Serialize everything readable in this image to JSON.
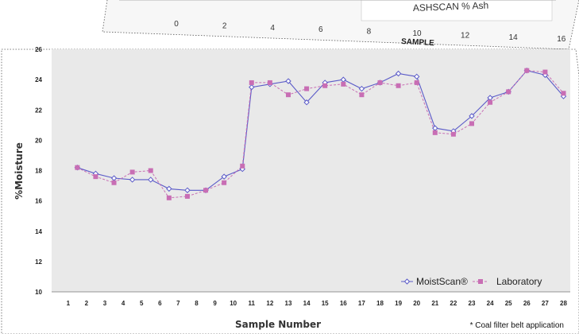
{
  "chart_data": [
    {
      "type": "line",
      "xlabel": "SAMPLE",
      "xticks": [
        "0",
        "2",
        "4",
        "6",
        "8",
        "10",
        "12",
        "14",
        "16"
      ],
      "legend_fragment": "ASHSCAN % Ash"
    },
    {
      "type": "line",
      "xlabel": "Sample Number",
      "ylabel": "%Moisture",
      "ylim": [
        10,
        26
      ],
      "yticks": [
        "10",
        "12",
        "14",
        "16",
        "18",
        "20",
        "22",
        "24",
        "26"
      ],
      "xticks": [
        "1",
        "2",
        "3",
        "4",
        "5",
        "6",
        "7",
        "8",
        "9",
        "10",
        "11",
        "12",
        "13",
        "14",
        "15",
        "16",
        "17",
        "18",
        "19",
        "20",
        "21",
        "22",
        "23",
        "24",
        "25",
        "26",
        "27",
        "28"
      ],
      "grid": false,
      "legend_position": "bottom-right",
      "note": "* Coal filter belt application",
      "series": [
        {
          "name": "MoistScan®",
          "color": "#5a5ac8",
          "marker": "diamond",
          "points": [
            [
              0.5,
              18.2
            ],
            [
              1.5,
              17.8
            ],
            [
              2.5,
              17.5
            ],
            [
              3.5,
              17.4
            ],
            [
              4.5,
              17.4
            ],
            [
              5.5,
              16.8
            ],
            [
              6.5,
              16.7
            ],
            [
              7.5,
              16.7
            ],
            [
              8.5,
              17.6
            ],
            [
              9.5,
              18.1
            ],
            [
              10,
              23.5
            ],
            [
              11,
              23.7
            ],
            [
              12,
              23.9
            ],
            [
              13,
              22.5
            ],
            [
              14,
              23.8
            ],
            [
              15,
              24.0
            ],
            [
              16,
              23.4
            ],
            [
              17,
              23.8
            ],
            [
              18,
              24.4
            ],
            [
              19,
              24.2
            ],
            [
              20,
              20.8
            ],
            [
              21,
              20.6
            ],
            [
              22,
              21.6
            ],
            [
              23,
              22.8
            ],
            [
              24,
              23.2
            ],
            [
              25,
              24.6
            ],
            [
              26,
              24.3
            ],
            [
              27,
              22.9
            ]
          ]
        },
        {
          "name": "Laboratory",
          "color": "#c86eb4",
          "marker": "square",
          "points": [
            [
              0.5,
              18.2
            ],
            [
              1.5,
              17.6
            ],
            [
              2.5,
              17.2
            ],
            [
              3.5,
              17.9
            ],
            [
              4.5,
              18.0
            ],
            [
              5.5,
              16.2
            ],
            [
              6.5,
              16.3
            ],
            [
              7.5,
              16.7
            ],
            [
              8.5,
              17.2
            ],
            [
              9.5,
              18.3
            ],
            [
              10,
              23.8
            ],
            [
              11,
              23.8
            ],
            [
              12,
              23.0
            ],
            [
              13,
              23.4
            ],
            [
              14,
              23.6
            ],
            [
              15,
              23.7
            ],
            [
              16,
              23.0
            ],
            [
              17,
              23.8
            ],
            [
              18,
              23.6
            ],
            [
              19,
              23.8
            ],
            [
              20,
              20.5
            ],
            [
              21,
              20.4
            ],
            [
              22,
              21.1
            ],
            [
              23,
              22.5
            ],
            [
              24,
              23.2
            ],
            [
              25,
              24.6
            ],
            [
              26,
              24.5
            ],
            [
              27,
              23.1
            ]
          ]
        }
      ]
    }
  ]
}
